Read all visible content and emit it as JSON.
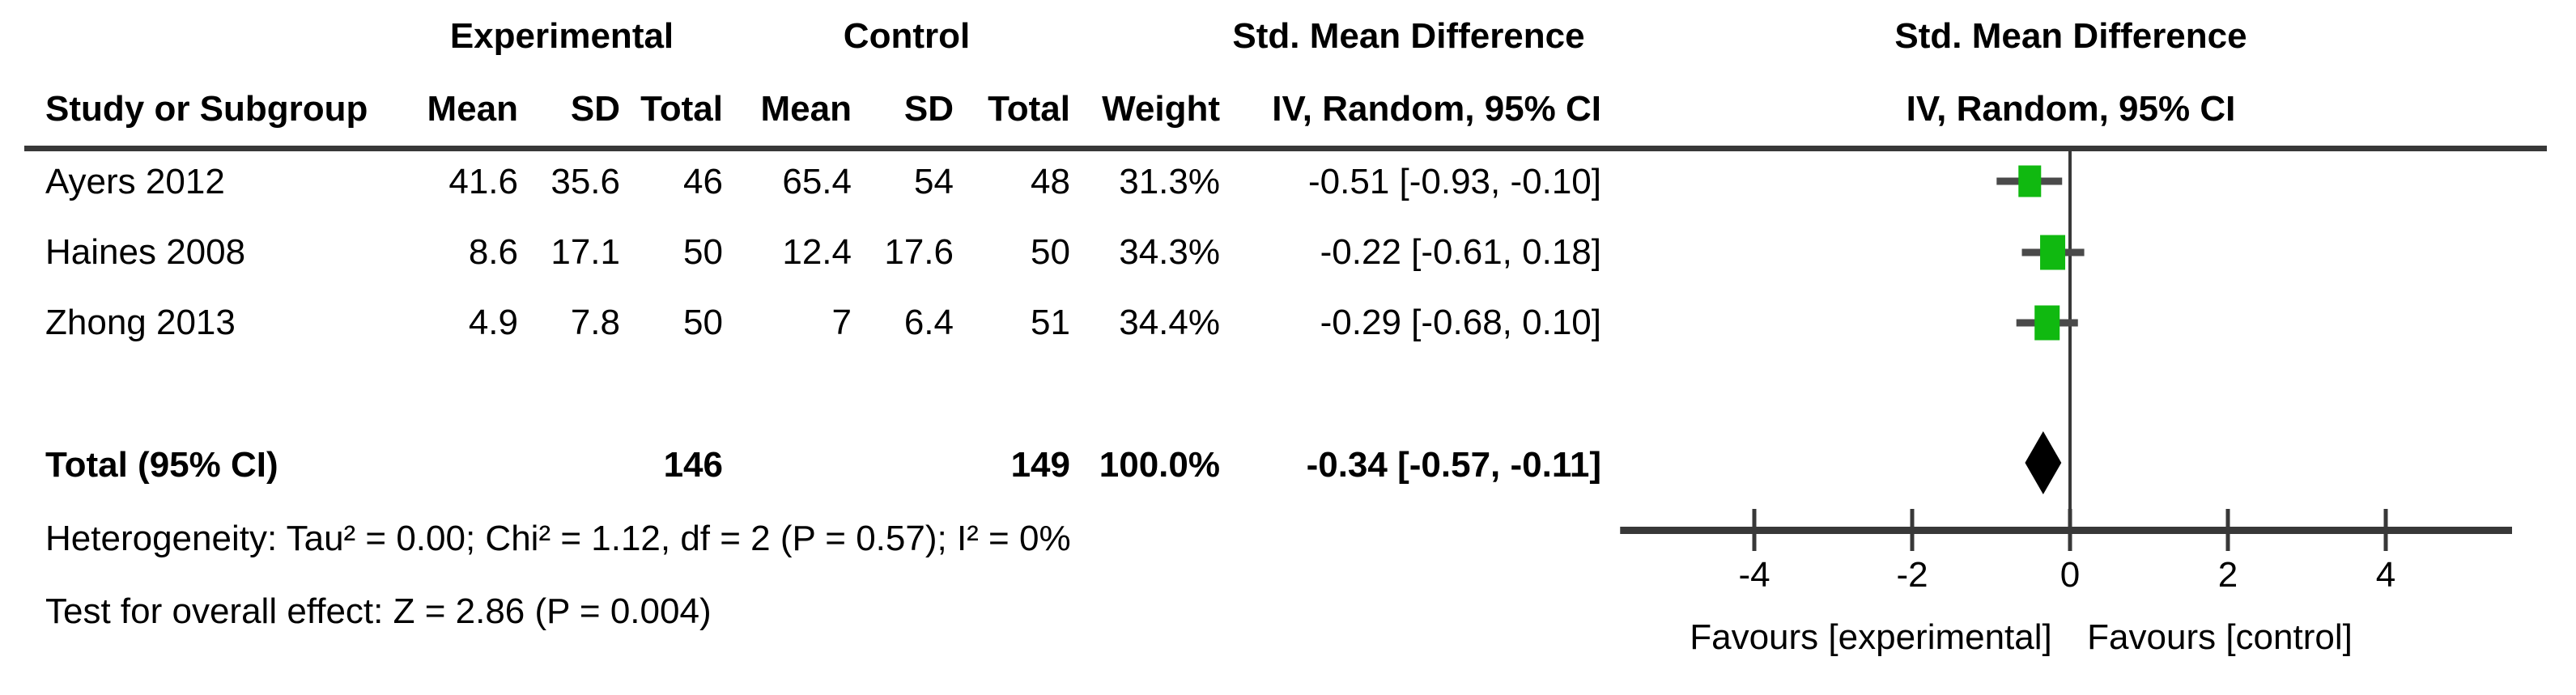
{
  "table": {
    "header": {
      "group_experimental": "Experimental",
      "group_control": "Control",
      "smd_title": "Std. Mean Difference",
      "study": "Study or Subgroup",
      "mean": "Mean",
      "sd": "SD",
      "total": "Total",
      "weight": "Weight",
      "smd_subtitle": "IV, Random, 95% CI"
    },
    "studies": [
      {
        "name": "Ayers 2012",
        "exp_mean": "41.6",
        "exp_sd": "35.6",
        "exp_total": "46",
        "ctrl_mean": "65.4",
        "ctrl_sd": "54",
        "ctrl_total": "48",
        "weight": "31.3%",
        "smd": "-0.51 [-0.93, -0.10]"
      },
      {
        "name": "Haines 2008",
        "exp_mean": "8.6",
        "exp_sd": "17.1",
        "exp_total": "50",
        "ctrl_mean": "12.4",
        "ctrl_sd": "17.6",
        "ctrl_total": "50",
        "weight": "34.3%",
        "smd": "-0.22 [-0.61, 0.18]"
      },
      {
        "name": "Zhong 2013",
        "exp_mean": "4.9",
        "exp_sd": "7.8",
        "exp_total": "50",
        "ctrl_mean": "7",
        "ctrl_sd": "6.4",
        "ctrl_total": "51",
        "weight": "34.4%",
        "smd": "-0.29 [-0.68, 0.10]"
      }
    ],
    "total_row": {
      "label": "Total (95% CI)",
      "exp_total": "146",
      "ctrl_total": "149",
      "weight": "100.0%",
      "smd": "-0.34 [-0.57, -0.11]"
    },
    "footnotes": {
      "heterogeneity": "Heterogeneity: Tau² = 0.00; Chi² = 1.12, df = 2 (P = 0.57); I² = 0%",
      "overall_effect": "Test for overall effect: Z = 2.86 (P = 0.004)"
    }
  },
  "plot_header": {
    "line1": "Std. Mean Difference",
    "line2": "IV, Random, 95% CI"
  },
  "chart_data": {
    "type": "forest",
    "title": "Std. Mean Difference, IV, Random, 95% CI",
    "studies": [
      {
        "name": "Ayers 2012",
        "est": -0.51,
        "lo": -0.93,
        "hi": -0.1,
        "weight_pct": 31.3
      },
      {
        "name": "Haines 2008",
        "est": -0.22,
        "lo": -0.61,
        "hi": 0.18,
        "weight_pct": 34.3
      },
      {
        "name": "Zhong 2013",
        "est": -0.29,
        "lo": -0.68,
        "hi": 0.1,
        "weight_pct": 34.4
      }
    ],
    "total": {
      "label": "Total (95% CI)",
      "est": -0.34,
      "lo": -0.57,
      "hi": -0.11,
      "weight_pct": 100.0
    },
    "axis": {
      "ticks": [
        -4,
        -2,
        0,
        2,
        4
      ],
      "xlim": [
        -5.7,
        5.6
      ],
      "zero_line": true
    },
    "xlabel_left": "Favours [experimental]",
    "xlabel_right": "Favours [control]",
    "colors": {
      "marker": "#10b910",
      "ci_line": "#4a4a4a",
      "axis": "#383838",
      "diamond": "#000000"
    }
  }
}
